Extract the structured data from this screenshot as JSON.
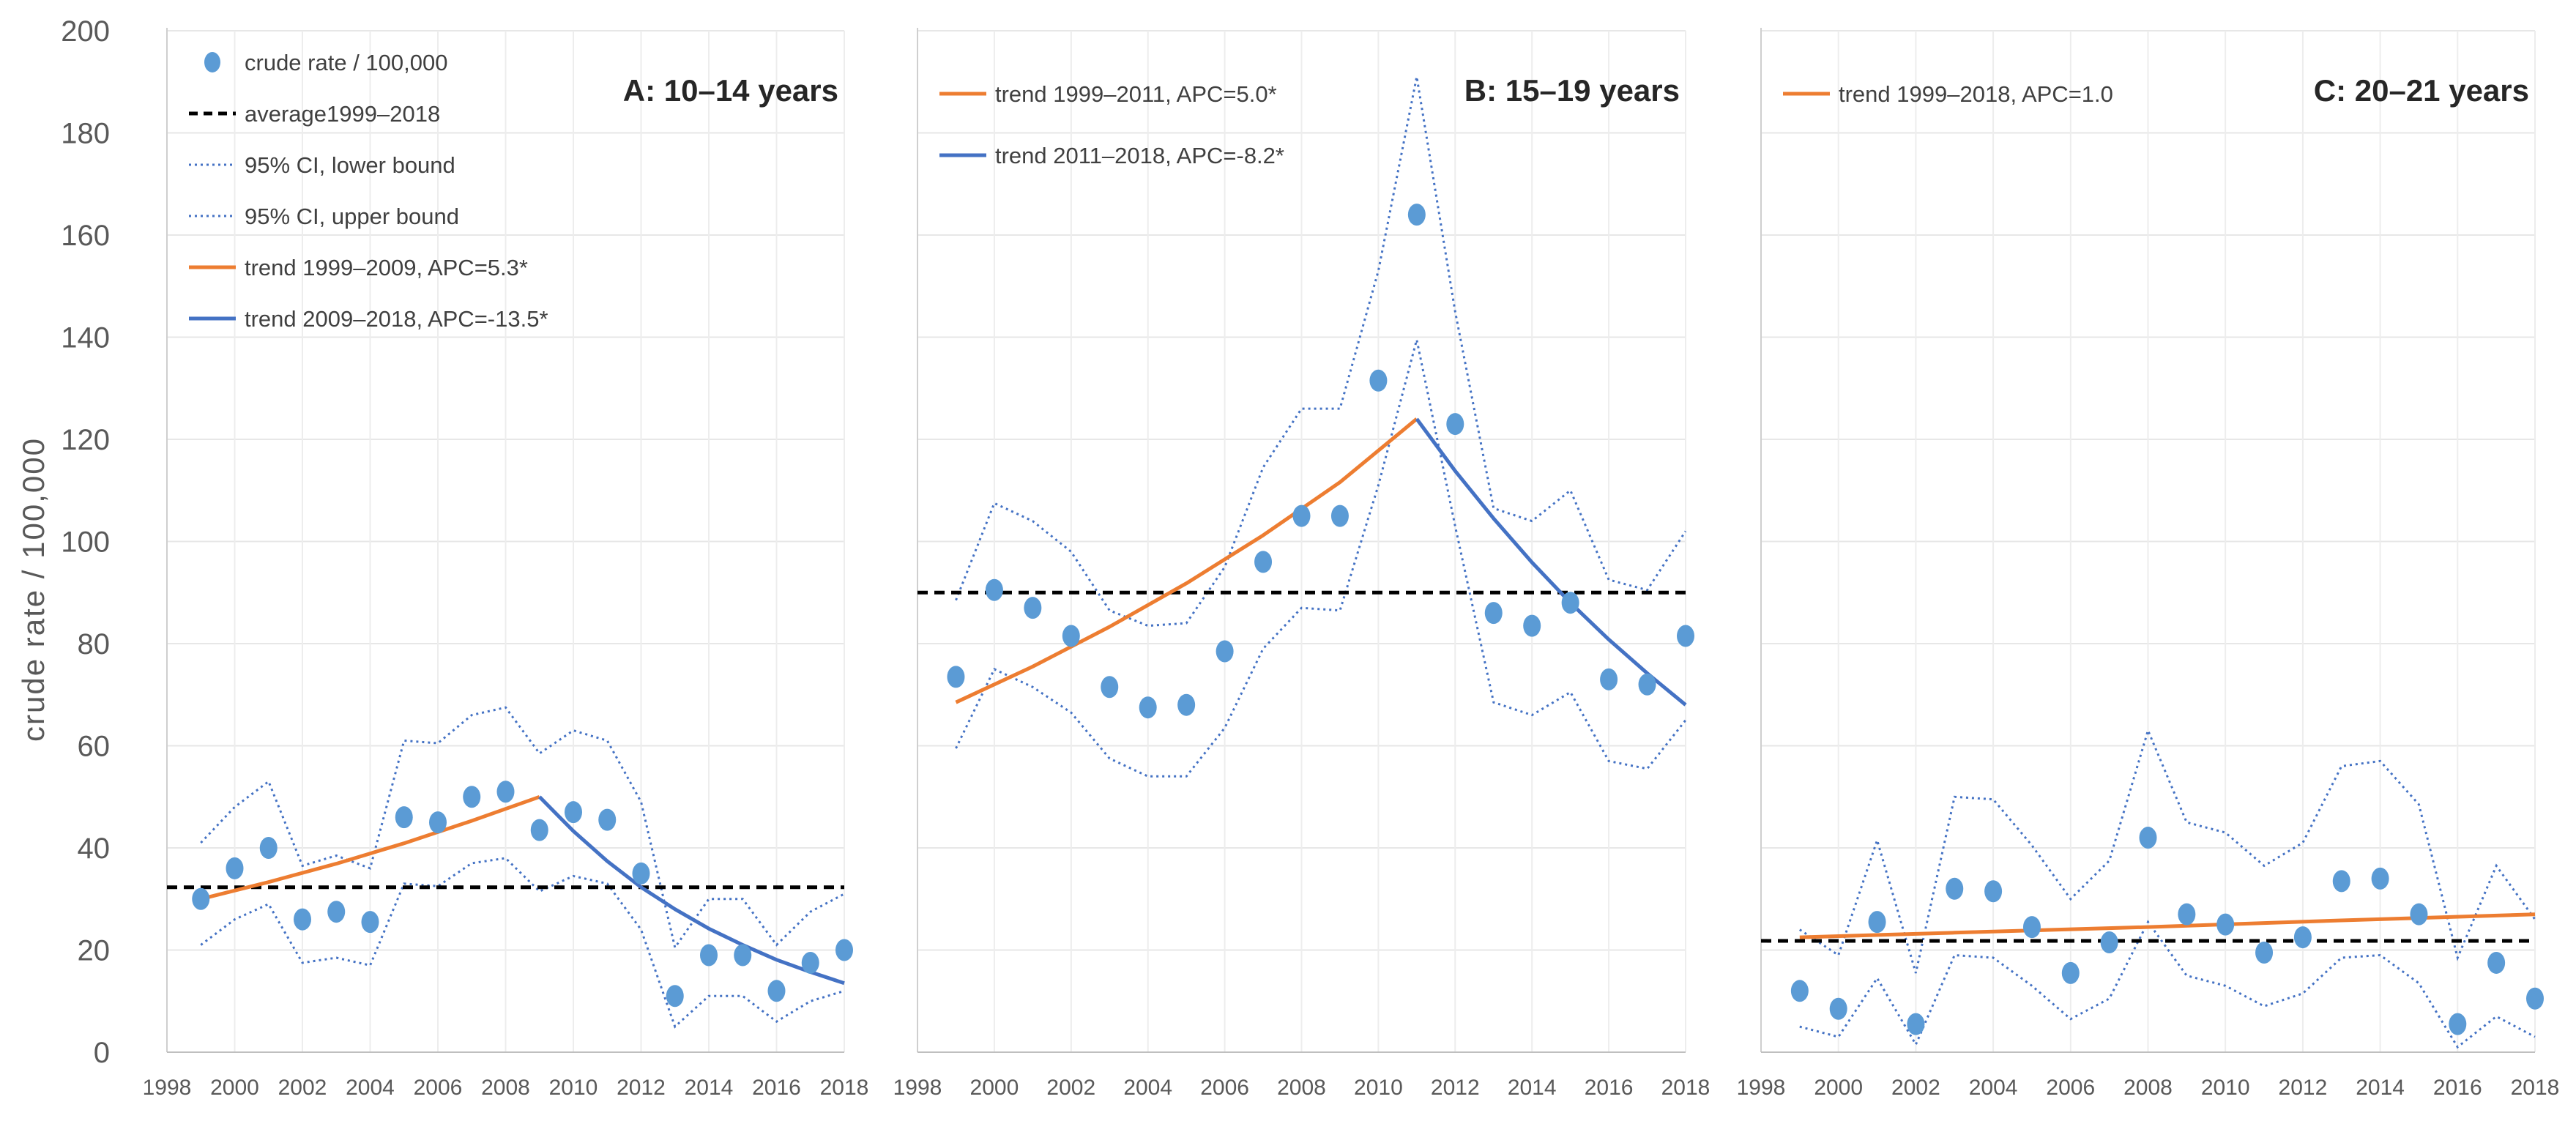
{
  "chart_data": {
    "type": "scatter",
    "ylabel": "crude rate / 100,000",
    "ylim": [
      0,
      200
    ],
    "yticks": [
      "0",
      "20",
      "40",
      "60",
      "80",
      "100",
      "120",
      "140",
      "160",
      "180",
      "200"
    ],
    "xlim": [
      1998,
      2018
    ],
    "xticks": [
      "1998",
      "2000",
      "2002",
      "2004",
      "2006",
      "2008",
      "2010",
      "2012",
      "2014",
      "2016",
      "2018"
    ],
    "grid": true,
    "colors": {
      "points": "#5b9bd5",
      "ci": "#4472c4",
      "average": "#000000",
      "trend_up": "#ed7d31",
      "trend_down": "#4472c4"
    },
    "panels": [
      {
        "title": "A: 10–14 years",
        "x": [
          1999,
          2000,
          2001,
          2002,
          2003,
          2004,
          2005,
          2006,
          2007,
          2008,
          2009,
          2010,
          2011,
          2012,
          2013,
          2014,
          2015,
          2016,
          2017,
          2018
        ],
        "crude_rate": [
          30,
          36,
          40,
          26,
          27.5,
          25.5,
          46,
          45,
          50,
          51,
          43.5,
          47,
          45.5,
          35,
          11,
          19,
          19,
          12,
          17.5,
          20
        ],
        "ci_lower": [
          21,
          26,
          29,
          17.5,
          18.5,
          17,
          33,
          32.5,
          37,
          38,
          31.5,
          34.5,
          33,
          24,
          5,
          11,
          11,
          6,
          10,
          12
        ],
        "ci_upper": [
          41,
          48,
          53,
          36.5,
          38.5,
          36,
          61,
          60.5,
          66,
          67.5,
          58.5,
          63,
          61,
          49,
          20.5,
          30,
          30,
          21,
          27.5,
          31
        ],
        "average": 32.3,
        "trends": [
          {
            "x": [
              1999,
              2001,
              2003,
              2005,
              2007,
              2009
            ],
            "y": [
              30,
              33.3,
              36.9,
              40.9,
              45.3,
              50
            ]
          },
          {
            "x": [
              2009,
              2010,
              2011,
              2012,
              2013,
              2014,
              2015,
              2016,
              2017,
              2018
            ],
            "y": [
              50,
              43.3,
              37.4,
              32.3,
              28,
              24.2,
              21,
              18.1,
              15.7,
              13.5
            ]
          }
        ],
        "legend": [
          {
            "type": "dot",
            "label": "crude rate / 100,000"
          },
          {
            "type": "dash",
            "label": "average1999–2018"
          },
          {
            "type": "dotted",
            "label": "95% CI, lower bound"
          },
          {
            "type": "dotted",
            "label": "95% CI, upper bound"
          },
          {
            "type": "trend_up",
            "label": "trend 1999–2009, APC=5.3*"
          },
          {
            "type": "trend_down",
            "label": "trend 2009–2018, APC=-13.5*"
          }
        ]
      },
      {
        "title": "B: 15–19 years",
        "x": [
          1999,
          2000,
          2001,
          2002,
          2003,
          2004,
          2005,
          2006,
          2007,
          2008,
          2009,
          2010,
          2011,
          2012,
          2013,
          2014,
          2015,
          2016,
          2017,
          2018
        ],
        "crude_rate": [
          73.5,
          90.5,
          87,
          81.5,
          71.5,
          67.5,
          68,
          78.5,
          96,
          105,
          105,
          131.5,
          164,
          123,
          86,
          83.5,
          88,
          73,
          72,
          81.5
        ],
        "ci_lower": [
          59.5,
          75,
          71.5,
          66.5,
          57.5,
          54,
          54,
          63.5,
          79,
          87,
          86.5,
          111,
          139.5,
          103,
          68.5,
          66,
          70.5,
          57,
          55.5,
          65
        ],
        "ci_upper": [
          88.5,
          107.5,
          104,
          98,
          86.5,
          83.5,
          84,
          95,
          114.5,
          126,
          126,
          153,
          191,
          145,
          106.5,
          104,
          110,
          92.5,
          90.5,
          102
        ],
        "average": 90,
        "trends": [
          {
            "x": [
              1999,
              2001,
              2003,
              2005,
              2007,
              2009,
              2011
            ],
            "y": [
              68.5,
              75.5,
              83.3,
              91.8,
              101.2,
              111.6,
              124
            ]
          },
          {
            "x": [
              2011,
              2012,
              2013,
              2014,
              2015,
              2016,
              2017,
              2018
            ],
            "y": [
              124,
              113.8,
              104.5,
              95.9,
              88,
              80.8,
              74.2,
              68
            ]
          }
        ],
        "legend": [
          {
            "type": "trend_up",
            "label": "trend 1999–2011, APC=5.0*"
          },
          {
            "type": "trend_down",
            "label": "trend 2011–2018, APC=-8.2*"
          }
        ]
      },
      {
        "title": "C: 20–21 years",
        "x": [
          1999,
          2000,
          2001,
          2002,
          2003,
          2004,
          2005,
          2006,
          2007,
          2008,
          2009,
          2010,
          2011,
          2012,
          2013,
          2014,
          2015,
          2016,
          2017,
          2018
        ],
        "crude_rate": [
          12,
          8.5,
          25.5,
          5.5,
          32,
          31.5,
          24.5,
          15.5,
          21.5,
          42,
          27,
          25,
          19.5,
          22.5,
          33.5,
          34,
          27,
          5.5,
          17.5,
          10.5
        ],
        "ci_lower": [
          5,
          3,
          14.5,
          1.5,
          19,
          18.5,
          13,
          6.5,
          10.5,
          25.5,
          15,
          13,
          9,
          11.5,
          18.5,
          19,
          13.5,
          1,
          7,
          3
        ],
        "ci_upper": [
          24,
          19,
          41.5,
          15.5,
          50,
          49.5,
          40.5,
          30,
          37.5,
          63,
          45,
          43,
          36.5,
          41,
          56,
          57,
          48.5,
          18.5,
          36.5,
          26
        ],
        "average": 21.8,
        "trends": [
          {
            "x": [
              1999,
              2003,
              2008,
              2013,
              2018
            ],
            "y": [
              22.5,
              23.4,
              24.5,
              25.8,
              27
            ]
          }
        ],
        "legend": [
          {
            "type": "trend_up",
            "label": "trend 1999–2018, APC=1.0"
          }
        ]
      }
    ]
  }
}
